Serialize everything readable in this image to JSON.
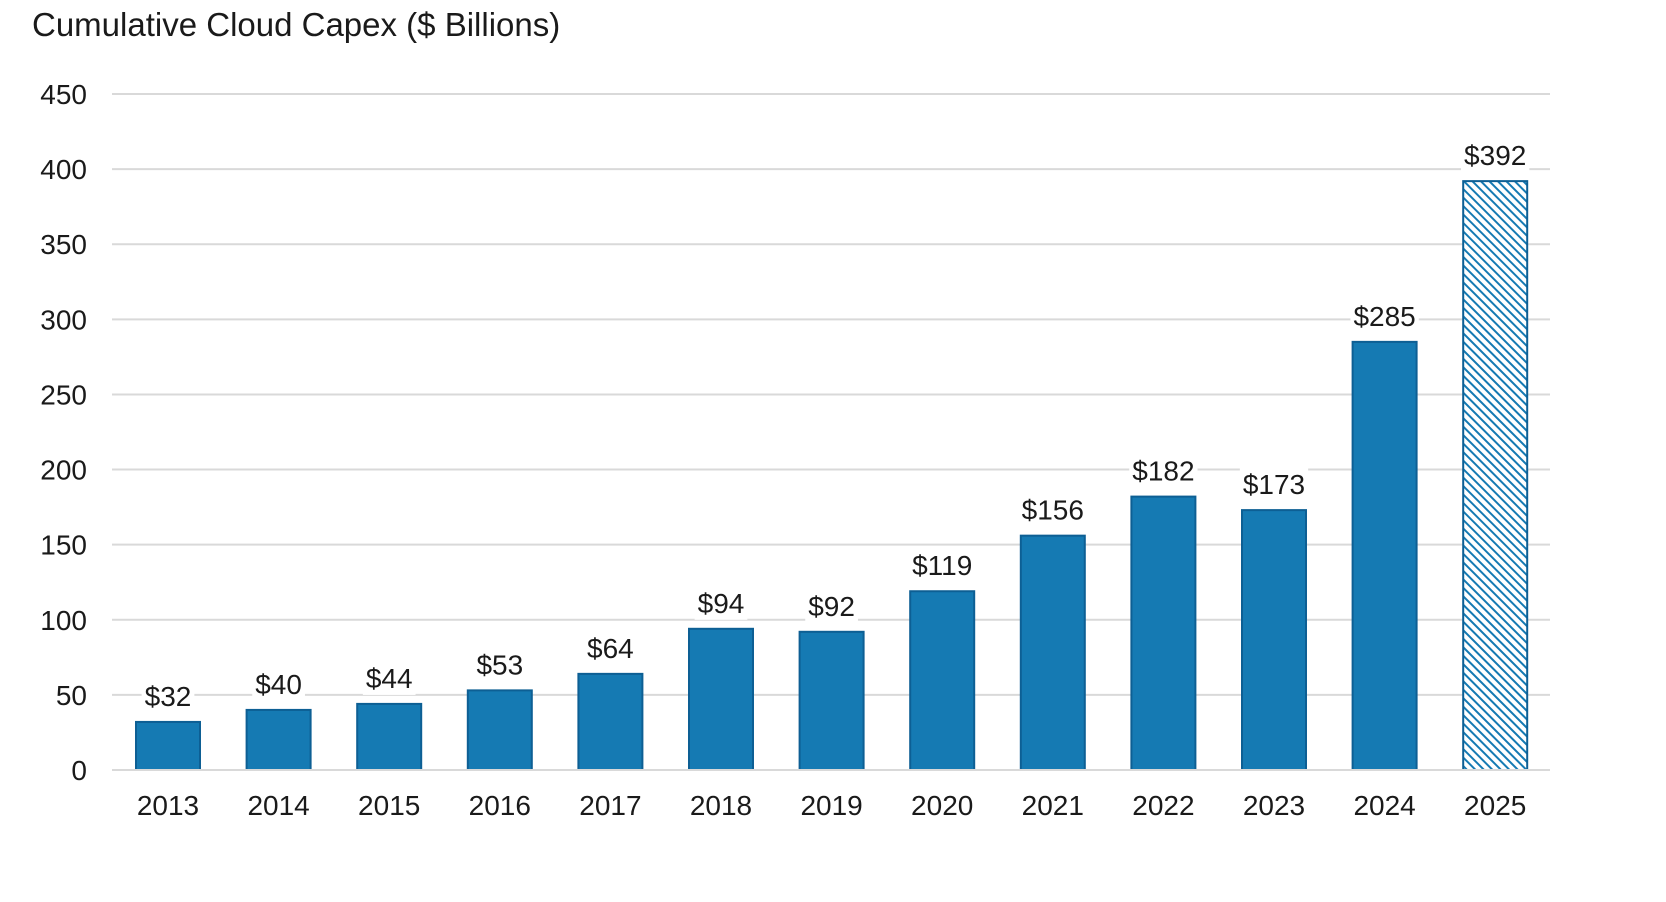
{
  "chart_data": {
    "type": "bar",
    "title": "Cumulative Cloud Capex ($ Billions)",
    "xlabel": "",
    "ylabel": "",
    "categories": [
      "2013",
      "2014",
      "2015",
      "2016",
      "2017",
      "2018",
      "2019",
      "2020",
      "2021",
      "2022",
      "2023",
      "2024",
      "2025"
    ],
    "values": [
      32,
      40,
      44,
      53,
      64,
      94,
      92,
      119,
      156,
      182,
      173,
      285,
      392
    ],
    "data_labels": [
      "$32",
      "$40",
      "$44",
      "$53",
      "$64",
      "$94",
      "$92",
      "$119",
      "$156",
      "$182",
      "$173",
      "$285",
      "$392"
    ],
    "projected": [
      false,
      false,
      false,
      false,
      false,
      false,
      false,
      false,
      false,
      false,
      false,
      false,
      true
    ],
    "ylim": [
      0,
      450
    ],
    "yticks": [
      0,
      50,
      100,
      150,
      200,
      250,
      300,
      350,
      400,
      450
    ],
    "grid": true,
    "legend": "none",
    "colors": {
      "bar": "#157ab3",
      "bar_border": "#0d5f94",
      "projected_hatch": "#157ab3",
      "grid": "#d9d9d9",
      "axis": "#d9d9d9"
    }
  }
}
